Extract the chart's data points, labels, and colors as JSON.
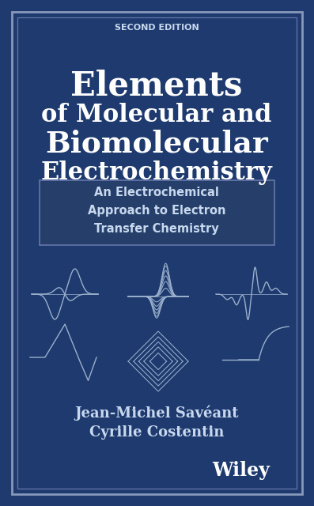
{
  "bg_color": "#1e3a6e",
  "border_color_outer": "#8899bb",
  "border_color_inner": "#6677aa",
  "text_color_white": "#ffffff",
  "text_color_light": "#aabbdd",
  "text_color_subtitle": "#c8d8ee",
  "edition_text": "SECOND EDITION",
  "title_line1": "Elements",
  "title_line2": "of Molecular and",
  "title_line3": "Biomolecular",
  "title_line4": "Electrochemistry",
  "subtitle_line1": "An Electrochemical",
  "subtitle_line2": "Approach to Electron",
  "subtitle_line3": "Transfer Chemistry",
  "author1": "Jean-Michel Savéant",
  "author2": "Cyrille Costentin",
  "publisher": "Wiley",
  "wave_color": "#9ab0cc",
  "subtitle_box_color": "#253f6a"
}
